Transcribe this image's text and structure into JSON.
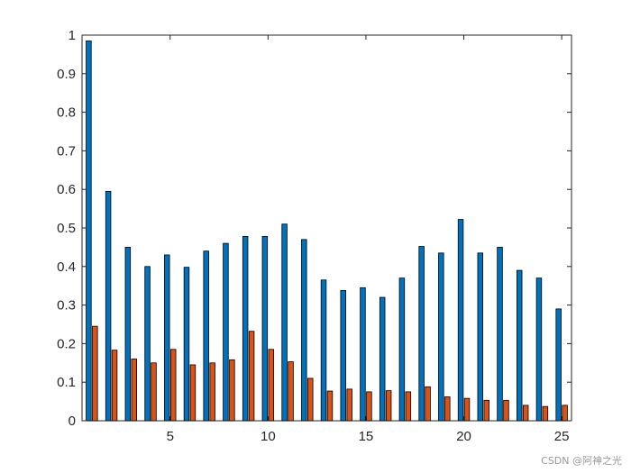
{
  "chart_data": {
    "type": "bar",
    "categories": [
      1,
      2,
      3,
      4,
      5,
      6,
      7,
      8,
      9,
      10,
      11,
      12,
      13,
      14,
      15,
      16,
      17,
      18,
      19,
      20,
      21,
      22,
      23,
      24,
      25
    ],
    "series": [
      {
        "color": "#0072BD",
        "values": [
          0.985,
          0.595,
          0.45,
          0.4,
          0.43,
          0.398,
          0.44,
          0.46,
          0.478,
          0.478,
          0.51,
          0.47,
          0.365,
          0.338,
          0.345,
          0.32,
          0.37,
          0.452,
          0.435,
          0.522,
          0.435,
          0.45,
          0.39,
          0.37,
          0.29
        ]
      },
      {
        "color": "#D95319",
        "values": [
          0.245,
          0.183,
          0.16,
          0.15,
          0.185,
          0.145,
          0.15,
          0.158,
          0.232,
          0.185,
          0.153,
          0.11,
          0.077,
          0.082,
          0.075,
          0.078,
          0.075,
          0.088,
          0.062,
          0.058,
          0.053,
          0.053,
          0.04,
          0.037,
          0.04
        ]
      }
    ],
    "title": "",
    "xlabel": "",
    "ylabel": "",
    "xlim": [
      0.5,
      25.5
    ],
    "ylim": [
      0,
      1
    ],
    "xticks": [
      5,
      10,
      15,
      20,
      25
    ],
    "yticks": [
      0,
      0.1,
      0.2,
      0.3,
      0.4,
      0.5,
      0.6,
      0.7,
      0.8,
      0.9,
      1
    ],
    "yticklabels": [
      "0",
      "0.1",
      "0.2",
      "0.3",
      "0.4",
      "0.5",
      "0.6",
      "0.7",
      "0.8",
      "0.9",
      "1"
    ],
    "grid": false,
    "legend": "none"
  },
  "watermark": "CSDN @阿神之光"
}
